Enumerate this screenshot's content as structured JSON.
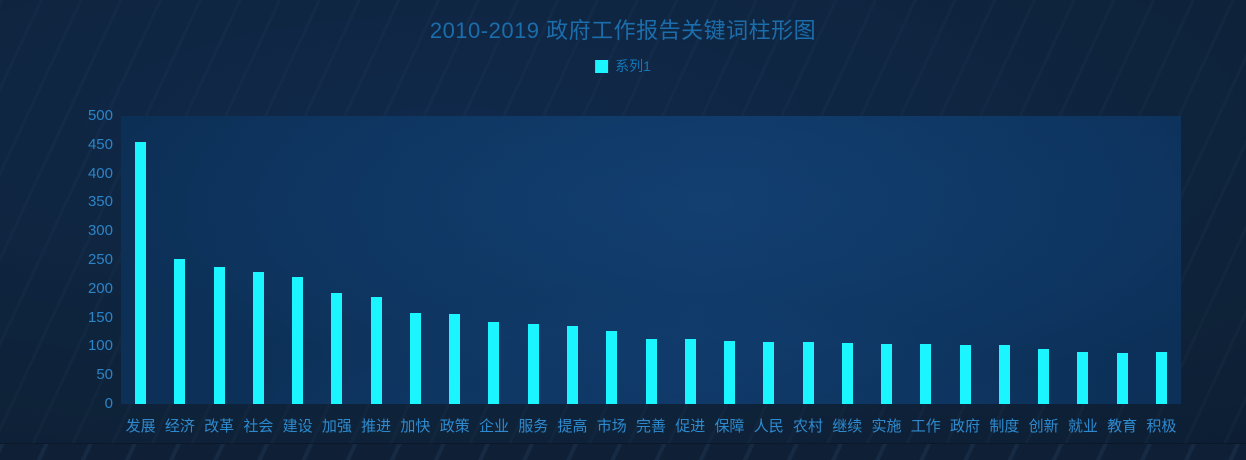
{
  "title": "2010-2019 政府工作报告关键词柱形图",
  "legend": {
    "series_label": "系列1",
    "marker_color": "#1af5ff"
  },
  "colors": {
    "background_outer": "#0e2239",
    "plot_panel": "#0d3158",
    "bar": "#1af5ff",
    "title_text": "#1b6dab",
    "legend_text": "#1577b8",
    "y_axis_text": "#2d84c6",
    "x_axis_text": "#2e8ace",
    "bottom_band": "#0e1f36"
  },
  "chart_data": {
    "type": "bar",
    "title": "2010-2019 政府工作报告关键词柱形图",
    "categories": [
      "发展",
      "经济",
      "改革",
      "社会",
      "建设",
      "加强",
      "推进",
      "加快",
      "政策",
      "企业",
      "服务",
      "提高",
      "市场",
      "完善",
      "促进",
      "保障",
      "人民",
      "农村",
      "继续",
      "实施",
      "工作",
      "政府",
      "制度",
      "创新",
      "就业",
      "教育",
      "积极"
    ],
    "series": [
      {
        "name": "系列1",
        "values": [
          455,
          251,
          237,
          230,
          221,
          193,
          185,
          158,
          156,
          143,
          139,
          136,
          126,
          113,
          112,
          110,
          108,
          107,
          106,
          105,
          104,
          103,
          102,
          95,
          91,
          89,
          90
        ]
      }
    ],
    "xlabel": "",
    "ylabel": "",
    "ylim": [
      0,
      500
    ],
    "y_ticks": [
      0,
      50,
      100,
      150,
      200,
      250,
      300,
      350,
      400,
      450,
      500
    ],
    "grid": false,
    "legend_position": "top-center",
    "bar_color": "#1af5ff"
  }
}
